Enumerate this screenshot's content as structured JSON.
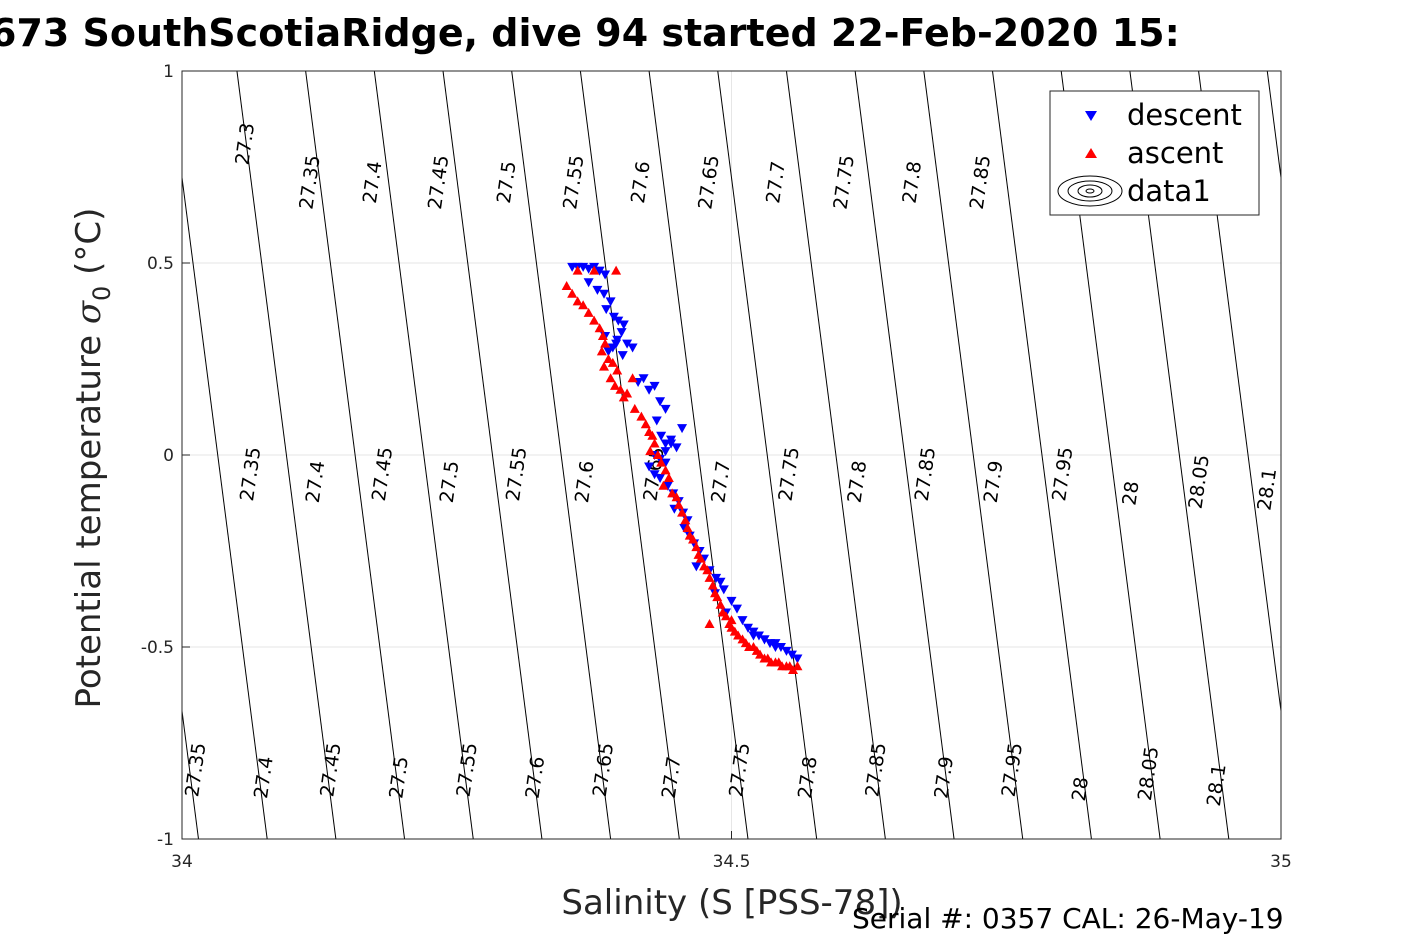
{
  "chart_data": {
    "type": "scatter",
    "title": "673 SouthScotiaRidge, dive 94 started 22-Feb-2020 15:",
    "xlabel": "Salinity (S [PSS-78])",
    "ylabel": "Potential temperature",
    "ylabel_sigma": "σ",
    "ylabel_sub": "0",
    "ylabel_unit": "(°C)",
    "xlim": [
      34,
      35
    ],
    "ylim": [
      -1,
      1
    ],
    "xticks": [
      34,
      34.5,
      35
    ],
    "xtick_labels": [
      "34",
      "34.5",
      "35"
    ],
    "yticks": [
      -1,
      -0.5,
      0,
      0.5,
      1
    ],
    "ytick_labels": [
      "-1",
      "-0.5",
      "0",
      "0.5",
      "1"
    ],
    "grid": true,
    "legend_position": "top-right",
    "legend": [
      "descent",
      "ascent",
      "data1"
    ],
    "colors": {
      "descent": "#0000ff",
      "ascent": "#ff0000",
      "contour": "#000000"
    },
    "series": [
      {
        "name": "descent",
        "marker": "triangle-down",
        "x": [
          34.355,
          34.36,
          34.365,
          34.37,
          34.375,
          34.38,
          34.385,
          34.37,
          34.378,
          34.384,
          34.39,
          34.386,
          34.393,
          34.397,
          34.402,
          34.4,
          34.396,
          34.392,
          34.385,
          34.388,
          34.395,
          34.401,
          34.405,
          34.41,
          34.42,
          34.415,
          34.43,
          34.425,
          34.435,
          34.44,
          34.432,
          34.436,
          34.44,
          34.445,
          34.43,
          34.44,
          34.425,
          34.435,
          34.45,
          34.455,
          34.445,
          34.44,
          34.43,
          34.435,
          34.442,
          34.447,
          34.452,
          34.448,
          34.456,
          34.46,
          34.457,
          34.462,
          34.466,
          34.471,
          34.475,
          34.468,
          34.48,
          34.486,
          34.49,
          34.493,
          34.485,
          34.5,
          34.505,
          34.495,
          34.51,
          34.515,
          34.52,
          34.525,
          34.53,
          34.535,
          34.54,
          34.545,
          34.55,
          34.555,
          34.56,
          34.52,
          34.53,
          34.54
        ],
        "y": [
          0.49,
          0.49,
          0.49,
          0.485,
          0.49,
          0.48,
          0.47,
          0.45,
          0.43,
          0.42,
          0.4,
          0.38,
          0.36,
          0.35,
          0.34,
          0.32,
          0.3,
          0.28,
          0.31,
          0.27,
          0.29,
          0.26,
          0.29,
          0.28,
          0.2,
          0.19,
          0.18,
          0.17,
          0.14,
          0.12,
          0.09,
          0.05,
          0.03,
          0.04,
          0.0,
          -0.02,
          -0.03,
          -0.01,
          0.02,
          0.07,
          0.03,
          0.01,
          -0.05,
          -0.06,
          -0.08,
          -0.1,
          -0.12,
          -0.14,
          -0.15,
          -0.17,
          -0.19,
          -0.21,
          -0.23,
          -0.25,
          -0.27,
          -0.29,
          -0.3,
          -0.32,
          -0.33,
          -0.35,
          -0.36,
          -0.38,
          -0.4,
          -0.41,
          -0.43,
          -0.45,
          -0.46,
          -0.47,
          -0.48,
          -0.49,
          -0.49,
          -0.5,
          -0.51,
          -0.52,
          -0.53,
          -0.47,
          -0.48,
          -0.5
        ]
      },
      {
        "name": "ascent",
        "marker": "triangle-up",
        "x": [
          34.35,
          34.355,
          34.36,
          34.365,
          34.37,
          34.375,
          34.38,
          34.383,
          34.385,
          34.382,
          34.388,
          34.384,
          34.392,
          34.396,
          34.39,
          34.394,
          34.399,
          34.402,
          34.41,
          34.405,
          34.412,
          34.418,
          34.422,
          34.425,
          34.428,
          34.43,
          34.426,
          34.433,
          34.436,
          34.44,
          34.443,
          34.438,
          34.446,
          34.45,
          34.452,
          34.455,
          34.458,
          34.46,
          34.462,
          34.465,
          34.468,
          34.47,
          34.472,
          34.475,
          34.478,
          34.48,
          34.483,
          34.485,
          34.487,
          34.49,
          34.492,
          34.495,
          34.498,
          34.5,
          34.503,
          34.506,
          34.51,
          34.513,
          34.516,
          34.52,
          34.523,
          34.526,
          34.53,
          34.533,
          34.536,
          34.54,
          34.543,
          34.546,
          34.55,
          34.553,
          34.556,
          34.56,
          34.5,
          34.48,
          34.36,
          34.375,
          34.395
        ],
        "y": [
          0.44,
          0.42,
          0.4,
          0.39,
          0.37,
          0.35,
          0.33,
          0.31,
          0.29,
          0.27,
          0.25,
          0.23,
          0.24,
          0.22,
          0.2,
          0.18,
          0.17,
          0.15,
          0.2,
          0.16,
          0.12,
          0.1,
          0.08,
          0.06,
          0.05,
          0.03,
          0.01,
          0.0,
          -0.02,
          -0.04,
          -0.06,
          -0.08,
          -0.1,
          -0.11,
          -0.13,
          -0.15,
          -0.17,
          -0.19,
          -0.21,
          -0.22,
          -0.24,
          -0.26,
          -0.27,
          -0.29,
          -0.3,
          -0.32,
          -0.34,
          -0.36,
          -0.37,
          -0.39,
          -0.41,
          -0.42,
          -0.44,
          -0.45,
          -0.46,
          -0.47,
          -0.48,
          -0.49,
          -0.5,
          -0.5,
          -0.51,
          -0.52,
          -0.53,
          -0.53,
          -0.54,
          -0.54,
          -0.54,
          -0.55,
          -0.55,
          -0.55,
          -0.56,
          -0.55,
          -0.43,
          -0.44,
          0.48,
          0.48,
          0.48
        ]
      }
    ],
    "contour_labels": [
      {
        "text": "27.3",
        "x": 34.058,
        "y": 0.81
      },
      {
        "text": "27.35",
        "x": 34.117,
        "y": 0.71
      },
      {
        "text": "27.4",
        "x": 34.174,
        "y": 0.71
      },
      {
        "text": "27.45",
        "x": 34.234,
        "y": 0.71
      },
      {
        "text": "27.5",
        "x": 34.296,
        "y": 0.71
      },
      {
        "text": "27.55",
        "x": 34.357,
        "y": 0.71
      },
      {
        "text": "27.6",
        "x": 34.418,
        "y": 0.71
      },
      {
        "text": "27.65",
        "x": 34.48,
        "y": 0.71
      },
      {
        "text": "27.7",
        "x": 34.541,
        "y": 0.71
      },
      {
        "text": "27.75",
        "x": 34.603,
        "y": 0.71
      },
      {
        "text": "27.8",
        "x": 34.665,
        "y": 0.71
      },
      {
        "text": "27.85",
        "x": 34.727,
        "y": 0.71
      },
      {
        "text": "27.35",
        "x": 34.063,
        "y": -0.05
      },
      {
        "text": "27.4",
        "x": 34.122,
        "y": -0.07
      },
      {
        "text": "27.45",
        "x": 34.183,
        "y": -0.05
      },
      {
        "text": "27.5",
        "x": 34.244,
        "y": -0.07
      },
      {
        "text": "27.55",
        "x": 34.305,
        "y": -0.05
      },
      {
        "text": "27.6",
        "x": 34.367,
        "y": -0.07
      },
      {
        "text": "27.65",
        "x": 34.43,
        "y": -0.05
      },
      {
        "text": "27.7",
        "x": 34.491,
        "y": -0.07
      },
      {
        "text": "27.75",
        "x": 34.553,
        "y": -0.05
      },
      {
        "text": "27.8",
        "x": 34.615,
        "y": -0.07
      },
      {
        "text": "27.85",
        "x": 34.677,
        "y": -0.05
      },
      {
        "text": "27.9",
        "x": 34.739,
        "y": -0.07
      },
      {
        "text": "27.95",
        "x": 34.802,
        "y": -0.05
      },
      {
        "text": "28",
        "x": 34.864,
        "y": -0.1
      },
      {
        "text": "28.05",
        "x": 34.926,
        "y": -0.07
      },
      {
        "text": "28.1",
        "x": 34.988,
        "y": -0.09
      },
      {
        "text": "27.35",
        "x": 34.013,
        "y": -0.82
      },
      {
        "text": "27.4",
        "x": 34.075,
        "y": -0.84
      },
      {
        "text": "27.45",
        "x": 34.136,
        "y": -0.82
      },
      {
        "text": "27.5",
        "x": 34.198,
        "y": -0.84
      },
      {
        "text": "27.55",
        "x": 34.26,
        "y": -0.82
      },
      {
        "text": "27.6",
        "x": 34.322,
        "y": -0.84
      },
      {
        "text": "27.65",
        "x": 34.384,
        "y": -0.82
      },
      {
        "text": "27.7",
        "x": 34.446,
        "y": -0.84
      },
      {
        "text": "27.75",
        "x": 34.508,
        "y": -0.82
      },
      {
        "text": "27.8",
        "x": 34.57,
        "y": -0.84
      },
      {
        "text": "27.85",
        "x": 34.632,
        "y": -0.82
      },
      {
        "text": "27.9",
        "x": 34.694,
        "y": -0.84
      },
      {
        "text": "27.95",
        "x": 34.756,
        "y": -0.82
      },
      {
        "text": "28",
        "x": 34.818,
        "y": -0.87
      },
      {
        "text": "28.05",
        "x": 34.88,
        "y": -0.83
      },
      {
        "text": "28.1",
        "x": 34.942,
        "y": -0.86
      }
    ],
    "footer": "Serial #: 0357  CAL: 26-May-19"
  }
}
